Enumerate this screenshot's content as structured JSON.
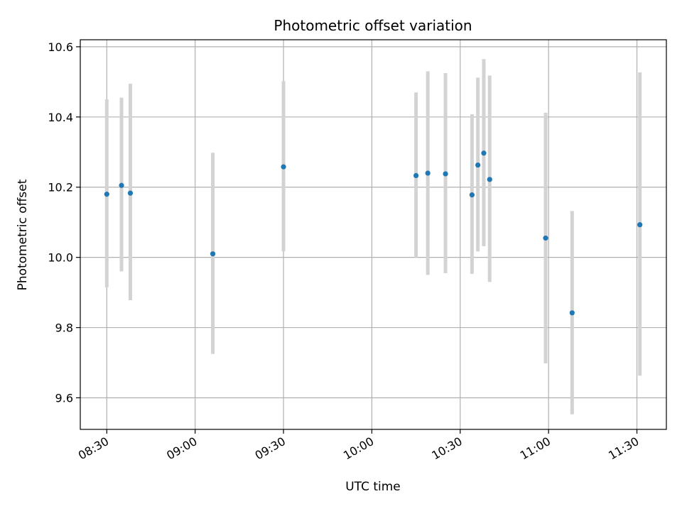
{
  "chart_data": {
    "type": "scatter",
    "title": "Photometric offset variation",
    "xlabel": "UTC time",
    "ylabel": "Photometric offset",
    "xlim": [
      "08:21",
      "11:40"
    ],
    "ylim": [
      9.51,
      10.62
    ],
    "x_ticks": [
      "08:30",
      "09:00",
      "09:30",
      "10:00",
      "10:30",
      "11:00",
      "11:30"
    ],
    "y_ticks": [
      "9.6",
      "9.8",
      "10.0",
      "10.2",
      "10.4",
      "10.6"
    ],
    "grid": true,
    "legend": "none",
    "series": [
      {
        "points": [
          {
            "x": "08:30",
            "y": 10.18,
            "yerr_low": 9.915,
            "yerr_high": 10.45
          },
          {
            "x": "08:35",
            "y": 10.205,
            "yerr_low": 9.96,
            "yerr_high": 10.455
          },
          {
            "x": "08:38",
            "y": 10.183,
            "yerr_low": 9.878,
            "yerr_high": 10.495
          },
          {
            "x": "09:06",
            "y": 10.01,
            "yerr_low": 9.725,
            "yerr_high": 10.298
          },
          {
            "x": "09:30",
            "y": 10.258,
            "yerr_low": 10.017,
            "yerr_high": 10.502
          },
          {
            "x": "10:15",
            "y": 10.233,
            "yerr_low": 10.0,
            "yerr_high": 10.47
          },
          {
            "x": "10:19",
            "y": 10.24,
            "yerr_low": 9.95,
            "yerr_high": 10.53
          },
          {
            "x": "10:25",
            "y": 10.238,
            "yerr_low": 9.955,
            "yerr_high": 10.525
          },
          {
            "x": "10:34",
            "y": 10.178,
            "yerr_low": 9.953,
            "yerr_high": 10.408
          },
          {
            "x": "10:36",
            "y": 10.263,
            "yerr_low": 10.017,
            "yerr_high": 10.512
          },
          {
            "x": "10:38",
            "y": 10.297,
            "yerr_low": 10.032,
            "yerr_high": 10.565
          },
          {
            "x": "10:40",
            "y": 10.222,
            "yerr_low": 9.93,
            "yerr_high": 10.518
          },
          {
            "x": "10:59",
            "y": 10.055,
            "yerr_low": 9.698,
            "yerr_high": 10.412
          },
          {
            "x": "11:08",
            "y": 9.842,
            "yerr_low": 9.553,
            "yerr_high": 10.132
          },
          {
            "x": "11:31",
            "y": 10.093,
            "yerr_low": 9.663,
            "yerr_high": 10.527
          }
        ]
      }
    ],
    "colors": {
      "point": "#1f77b4",
      "errorbar": "#d3d3d3",
      "grid": "#b0b0b0",
      "axis": "#000000"
    }
  }
}
